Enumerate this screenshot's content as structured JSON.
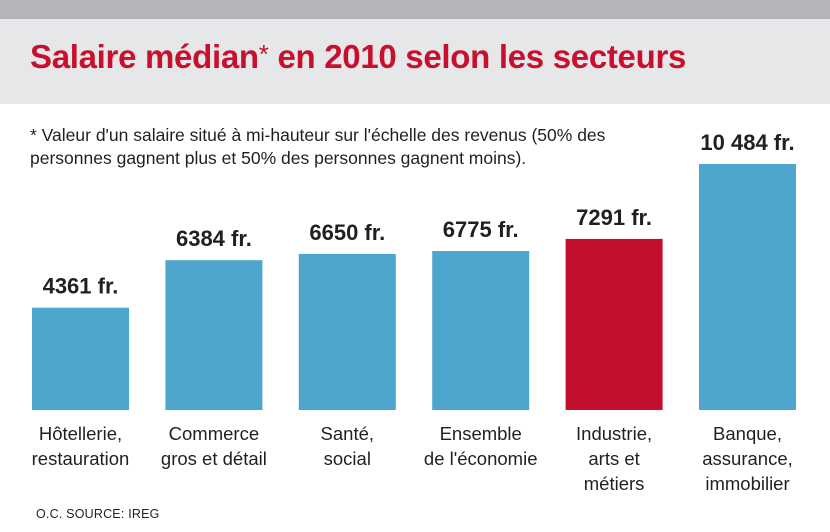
{
  "title": {
    "main": "Salaire médian",
    "star": "*",
    "rest": " en 2010 selon les secteurs"
  },
  "footnote": "* Valeur d'un salaire situé à mi-hauteur sur l'échelle des revenus (50% des personnes gagnent plus et 50% des personnes gagnent moins).",
  "source": "O.C. SOURCE: IREG",
  "colors": {
    "bar": "#4fa6cc",
    "highlight": "#c4102e",
    "title": "#c8102e"
  },
  "chart_data": {
    "type": "bar",
    "title": "Salaire médian* en 2010 selon les secteurs",
    "xlabel": "",
    "ylabel": "",
    "ylim": [
      0,
      10484
    ],
    "grid": false,
    "categories": [
      [
        "Hôtellerie,",
        "restauration"
      ],
      [
        "Commerce",
        "gros et détail"
      ],
      [
        "Santé,",
        "social"
      ],
      [
        "Ensemble",
        "de l'économie"
      ],
      [
        "Industrie,",
        "arts et",
        "métiers"
      ],
      [
        "Banque,",
        "assurance,",
        "immobilier"
      ]
    ],
    "values": [
      4361,
      6384,
      6650,
      6775,
      7291,
      10484
    ],
    "value_labels": [
      "4361 fr.",
      "6384 fr.",
      "6650 fr.",
      "6775 fr.",
      "7291 fr.",
      "10 484 fr."
    ],
    "highlight_index": 4
  }
}
